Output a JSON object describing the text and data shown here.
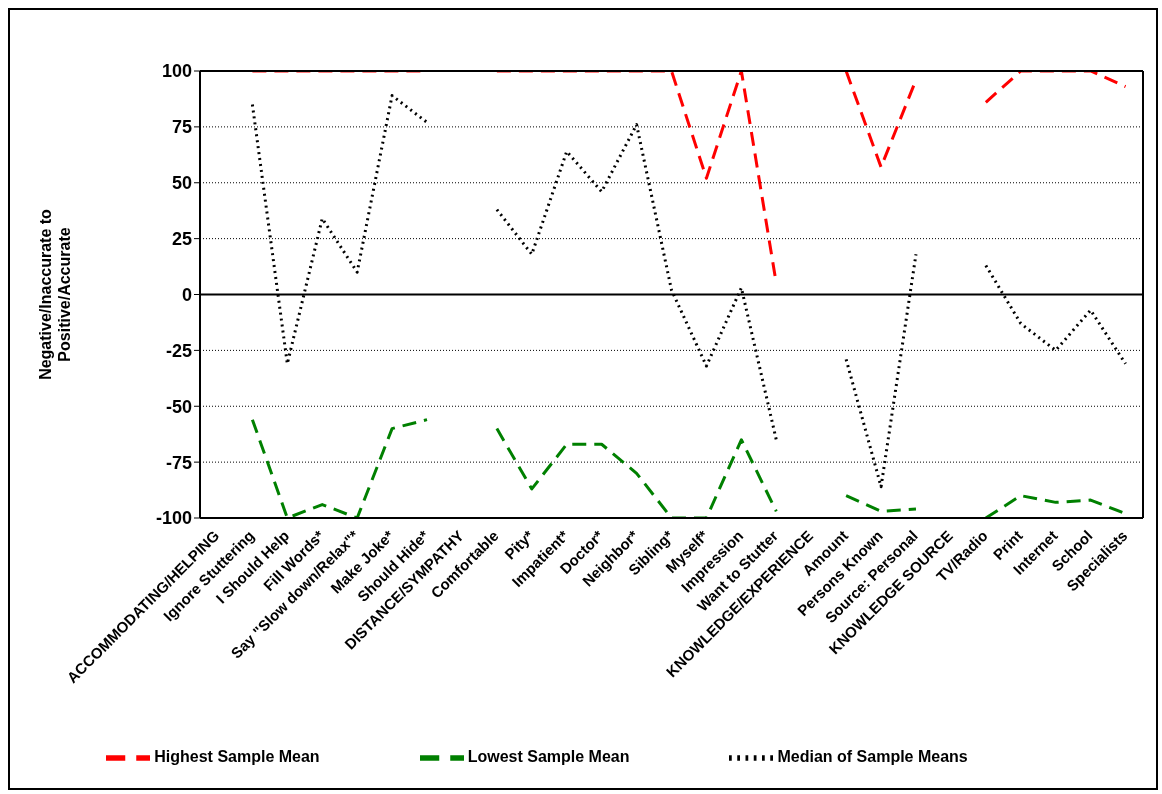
{
  "chart_data": {
    "type": "line",
    "ylabel": "Negative/Inaccurate to Positive/Accurate",
    "categories": [
      "ACCOMMODATING/HELPING",
      "Ignore Stuttering",
      "I Should Help",
      "Fill Words*",
      "Say \"Slow down/Relax\"*",
      "Make Joke*",
      "Should Hide*",
      "DISTANCE/SYMPATHY",
      "Comfortable",
      "Pity*",
      "Impatient*",
      "Doctor*",
      "Neighbor*",
      "Sibling*",
      "Myself*",
      "Impression",
      "Want to Stutter",
      "KNOWLEDGE/EXPERIENCE",
      "Amount",
      "Persons Known",
      "Source: Personal",
      "KNOWLEDGE SOURCE",
      "TV/Radio",
      "Print",
      "Internet",
      "School",
      "Specialists"
    ],
    "series": [
      {
        "name": "Lowest Sample Mean",
        "color": "#008000",
        "line_style": "dashed",
        "values": [
          null,
          -56,
          -100,
          -94,
          -100,
          -60,
          -56,
          null,
          -60,
          -87,
          -67,
          -67,
          -80,
          -100,
          -100,
          -65,
          -97,
          null,
          -90,
          -97,
          -96,
          null,
          -100,
          -90,
          -93,
          -92,
          -98
        ]
      },
      {
        "name": "Highest Sample Mean",
        "color": "#ff0000",
        "line_style": "dashed",
        "values": [
          null,
          100,
          100,
          100,
          100,
          100,
          100,
          null,
          100,
          100,
          100,
          100,
          100,
          100,
          52,
          100,
          5,
          null,
          100,
          57,
          96,
          null,
          86,
          100,
          100,
          100,
          93
        ]
      },
      {
        "name": "Median of Sample Means",
        "color": "#000000",
        "line_style": "dotted",
        "values": [
          null,
          85,
          -31,
          34,
          10,
          89,
          77,
          null,
          38,
          18,
          64,
          46,
          76,
          2,
          -32,
          3,
          -65,
          null,
          -29,
          -86,
          18,
          null,
          13,
          -13,
          -25,
          -7,
          -31
        ]
      }
    ],
    "ylim": [
      -100,
      100
    ],
    "yticks": [
      -100,
      -75,
      -50,
      -25,
      0,
      25,
      50,
      75,
      100
    ],
    "grid": "y",
    "legend": "bottom",
    "marker": "none",
    "ref_lines": [
      {
        "axis": "y",
        "value": 0
      }
    ]
  }
}
